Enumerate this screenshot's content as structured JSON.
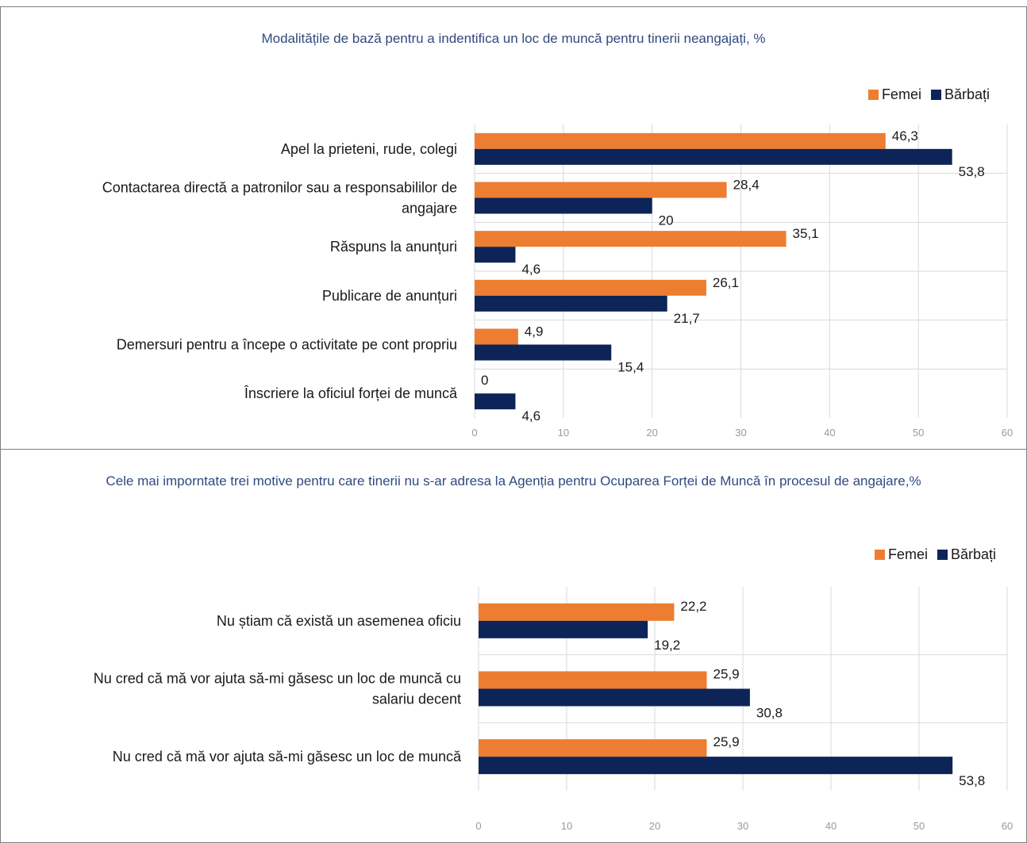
{
  "colors": {
    "femei": "#ed7d31",
    "barbati": "#0d2459",
    "grid": "#d9d9d9",
    "title": "#2f4a80"
  },
  "chart_data": [
    {
      "type": "bar",
      "orientation": "horizontal",
      "title": "Modalitățile de bază pentru a indentifica un loc de muncă pentru tinerii neangajați, %",
      "categories": [
        [
          "Apel la prieteni, rude, colegi"
        ],
        [
          "Contactarea directă a patronilor sau a responsabililor de",
          "angajare"
        ],
        [
          "Răspuns la anunțuri"
        ],
        [
          "Publicare de anunțuri"
        ],
        [
          "Demersuri pentru a începe o activitate pe cont propriu"
        ],
        [
          "Înscriere la oficiul forței de muncă"
        ]
      ],
      "series": [
        {
          "name": "Femei",
          "values": [
            46.3,
            28.4,
            35.1,
            26.1,
            4.9,
            0
          ],
          "labels": [
            "46,3",
            "28,4",
            "35,1",
            "26,1",
            "4,9",
            "0"
          ]
        },
        {
          "name": "Bărbați",
          "values": [
            53.8,
            20,
            4.6,
            21.7,
            15.4,
            4.6
          ],
          "labels": [
            "53,8",
            "20",
            "4,6",
            "21,7",
            "15,4",
            "4,6"
          ]
        }
      ],
      "xlim": [
        0,
        60
      ],
      "xticks": [
        0,
        10,
        20,
        30,
        40,
        50,
        60
      ],
      "grid": true,
      "legend": "top-right"
    },
    {
      "type": "bar",
      "orientation": "horizontal",
      "title": "Cele mai impornt­ate trei motive pentru care tinerii nu s-ar adresa la Agenția pentru Ocuparea Forței de Muncă în procesul de angajare,%",
      "categories": [
        [
          "Nu știam că există un asemenea oficiu"
        ],
        [
          "Nu cred că mă vor ajuta să-mi găsesc un loc de muncă cu",
          "salariu decent"
        ],
        [
          "Nu cred că mă vor ajuta să-mi găsesc un loc de muncă"
        ]
      ],
      "series": [
        {
          "name": "Femei",
          "values": [
            22.2,
            25.9,
            25.9
          ],
          "labels": [
            "22,2",
            "25,9",
            "25,9"
          ]
        },
        {
          "name": "Bărbați",
          "values": [
            19.2,
            30.8,
            53.8
          ],
          "labels": [
            "19,2",
            "30,8",
            "53,8"
          ]
        }
      ],
      "xlim": [
        0,
        60
      ],
      "xticks": [
        0,
        10,
        20,
        30,
        40,
        50,
        60
      ],
      "grid": true,
      "legend": "top-right"
    }
  ]
}
